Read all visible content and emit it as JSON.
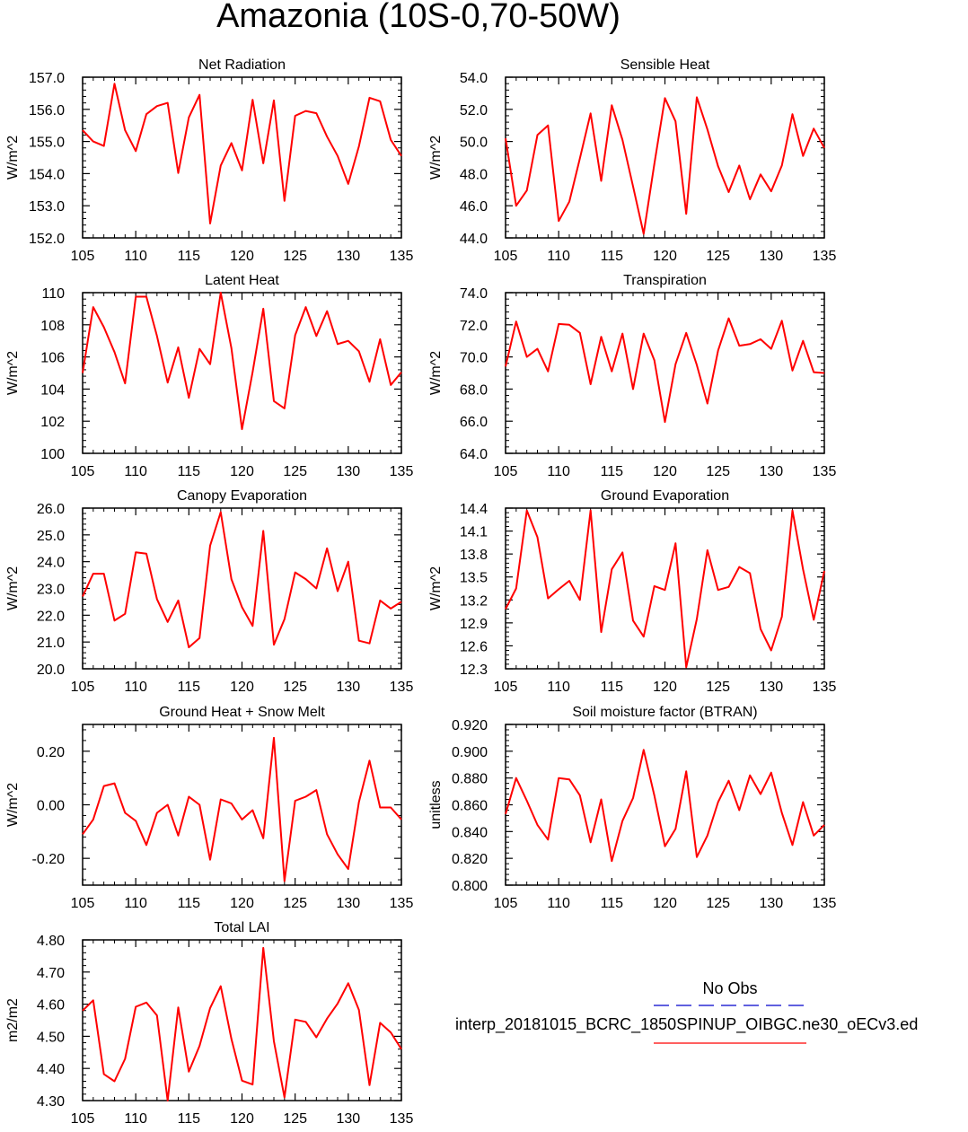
{
  "title": "Amazonia (10S-0,70-50W)",
  "legend": {
    "obs_label": "No Obs",
    "model_label": "interp_20181015_BCRC_1850SPINUP_OIBGC.ne30_oECv3.ed",
    "obs_color": "#0000cc",
    "model_color": "#ff0000"
  },
  "chart_data": [
    {
      "type": "line",
      "title": "Net Radiation",
      "ylabel": "W/m^2",
      "xlim": [
        105,
        135
      ],
      "ylim": [
        152.0,
        157.0
      ],
      "xticks": [
        "105",
        "110",
        "115",
        "120",
        "125",
        "130",
        "135"
      ],
      "yticks": [
        "152.0",
        "153.0",
        "154.0",
        "155.0",
        "156.0",
        "157.0"
      ],
      "x": [
        105,
        106,
        107,
        108,
        109,
        110,
        111,
        112,
        113,
        114,
        115,
        116,
        117,
        118,
        119,
        120,
        121,
        122,
        123,
        124,
        125,
        126,
        127,
        128,
        129,
        130,
        131,
        132,
        133,
        134,
        135
      ],
      "series": [
        {
          "values": [
            155.35,
            155.0,
            154.86,
            156.8,
            155.35,
            154.7,
            155.85,
            156.1,
            156.2,
            154.02,
            155.75,
            156.45,
            152.45,
            154.25,
            154.95,
            154.1,
            156.3,
            154.32,
            156.28,
            153.15,
            155.8,
            155.95,
            155.88,
            155.15,
            154.55,
            153.68,
            154.85,
            156.36,
            156.25,
            155.05,
            154.55
          ]
        }
      ]
    },
    {
      "type": "line",
      "title": "Sensible Heat",
      "ylabel": "W/m^2",
      "xlim": [
        105,
        135
      ],
      "ylim": [
        44.0,
        54.0
      ],
      "xticks": [
        "105",
        "110",
        "115",
        "120",
        "125",
        "130",
        "135"
      ],
      "yticks": [
        "44.0",
        "46.0",
        "48.0",
        "50.0",
        "52.0",
        "54.0"
      ],
      "x": [
        105,
        106,
        107,
        108,
        109,
        110,
        111,
        112,
        113,
        114,
        115,
        116,
        117,
        118,
        119,
        120,
        121,
        122,
        123,
        124,
        125,
        126,
        127,
        128,
        129,
        130,
        131,
        132,
        133,
        134,
        135
      ],
      "series": [
        {
          "values": [
            50.2,
            46.0,
            46.95,
            50.4,
            51.0,
            45.05,
            46.25,
            48.95,
            51.75,
            47.55,
            52.25,
            50.1,
            47.2,
            44.25,
            48.6,
            52.7,
            51.25,
            45.5,
            52.75,
            50.75,
            48.45,
            46.85,
            48.5,
            46.4,
            47.95,
            46.9,
            48.5,
            51.7,
            49.1,
            50.8,
            49.6
          ]
        }
      ]
    },
    {
      "type": "line",
      "title": "Latent Heat",
      "ylabel": "W/m^2",
      "xlim": [
        105,
        135
      ],
      "ylim": [
        100,
        110
      ],
      "xticks": [
        "105",
        "110",
        "115",
        "120",
        "125",
        "130",
        "135"
      ],
      "yticks": [
        "100",
        "102",
        "104",
        "106",
        "108",
        "110"
      ],
      "x": [
        105,
        106,
        107,
        108,
        109,
        110,
        111,
        112,
        113,
        114,
        115,
        116,
        117,
        118,
        119,
        120,
        121,
        122,
        123,
        124,
        125,
        126,
        127,
        128,
        129,
        130,
        131,
        132,
        133,
        134,
        135
      ],
      "series": [
        {
          "values": [
            105.0,
            109.1,
            107.85,
            106.3,
            104.35,
            109.75,
            109.75,
            107.3,
            104.4,
            106.6,
            103.45,
            106.5,
            105.55,
            110.0,
            106.55,
            101.5,
            105.05,
            109.0,
            103.25,
            102.8,
            107.35,
            109.1,
            107.3,
            108.85,
            106.8,
            107.0,
            106.35,
            104.45,
            107.1,
            104.25,
            105.05
          ]
        }
      ]
    },
    {
      "type": "line",
      "title": "Transpiration",
      "ylabel": "W/m^2",
      "xlim": [
        105,
        135
      ],
      "ylim": [
        64.0,
        74.0
      ],
      "xticks": [
        "105",
        "110",
        "115",
        "120",
        "125",
        "130",
        "135"
      ],
      "yticks": [
        "64.0",
        "66.0",
        "68.0",
        "70.0",
        "72.0",
        "74.0"
      ],
      "x": [
        105,
        106,
        107,
        108,
        109,
        110,
        111,
        112,
        113,
        114,
        115,
        116,
        117,
        118,
        119,
        120,
        121,
        122,
        123,
        124,
        125,
        126,
        127,
        128,
        129,
        130,
        131,
        132,
        133,
        134,
        135
      ],
      "series": [
        {
          "values": [
            69.4,
            72.2,
            70.0,
            70.5,
            69.1,
            72.05,
            72.0,
            71.5,
            68.3,
            71.25,
            69.1,
            71.45,
            68.0,
            71.45,
            69.8,
            65.95,
            69.55,
            71.5,
            69.5,
            67.1,
            70.4,
            72.4,
            70.7,
            70.8,
            71.1,
            70.5,
            72.25,
            69.15,
            71.0,
            69.05,
            69.0
          ]
        }
      ]
    },
    {
      "type": "line",
      "title": "Canopy Evaporation",
      "ylabel": "W/m^2",
      "xlim": [
        105,
        135
      ],
      "ylim": [
        20.0,
        26.0
      ],
      "xticks": [
        "105",
        "110",
        "115",
        "120",
        "125",
        "130",
        "135"
      ],
      "yticks": [
        "20.0",
        "21.0",
        "22.0",
        "23.0",
        "24.0",
        "25.0",
        "26.0"
      ],
      "x": [
        105,
        106,
        107,
        108,
        109,
        110,
        111,
        112,
        113,
        114,
        115,
        116,
        117,
        118,
        119,
        120,
        121,
        122,
        123,
        124,
        125,
        126,
        127,
        128,
        129,
        130,
        131,
        132,
        133,
        134,
        135
      ],
      "series": [
        {
          "values": [
            22.7,
            23.55,
            23.55,
            21.8,
            22.05,
            24.35,
            24.3,
            22.6,
            21.75,
            22.55,
            20.8,
            21.15,
            24.6,
            25.85,
            23.35,
            22.3,
            21.6,
            25.15,
            20.9,
            21.85,
            23.6,
            23.35,
            23.0,
            24.5,
            22.9,
            24.0,
            21.05,
            20.95,
            22.55,
            22.25,
            22.5
          ]
        }
      ]
    },
    {
      "type": "line",
      "title": "Ground Evaporation",
      "ylabel": "W/m^2",
      "xlim": [
        105,
        135
      ],
      "ylim": [
        12.3,
        14.4
      ],
      "xticks": [
        "105",
        "110",
        "115",
        "120",
        "125",
        "130",
        "135"
      ],
      "yticks": [
        "12.3",
        "12.6",
        "12.9",
        "13.2",
        "13.5",
        "13.8",
        "14.1",
        "14.4"
      ],
      "x": [
        105,
        106,
        107,
        108,
        109,
        110,
        111,
        112,
        113,
        114,
        115,
        116,
        117,
        118,
        119,
        120,
        121,
        122,
        123,
        124,
        125,
        126,
        127,
        128,
        129,
        130,
        131,
        132,
        133,
        134,
        135
      ],
      "series": [
        {
          "values": [
            13.08,
            13.35,
            14.37,
            14.02,
            13.22,
            13.34,
            13.45,
            13.2,
            14.37,
            12.78,
            13.6,
            13.82,
            12.93,
            12.72,
            13.38,
            13.33,
            13.94,
            12.32,
            12.95,
            13.85,
            13.33,
            13.37,
            13.63,
            13.55,
            12.82,
            12.54,
            12.98,
            14.37,
            13.6,
            12.94,
            13.58
          ]
        }
      ]
    },
    {
      "type": "line",
      "title": "Ground Heat + Snow Melt",
      "ylabel": "W/m^2",
      "xlim": [
        105,
        135
      ],
      "ylim": [
        -0.3,
        0.3
      ],
      "xticks": [
        "105",
        "110",
        "115",
        "120",
        "125",
        "130",
        "135"
      ],
      "yticks": [
        "-0.20",
        "0.00",
        "0.20"
      ],
      "x": [
        105,
        106,
        107,
        108,
        109,
        110,
        111,
        112,
        113,
        114,
        115,
        116,
        117,
        118,
        119,
        120,
        121,
        122,
        123,
        124,
        125,
        126,
        127,
        128,
        129,
        130,
        131,
        132,
        133,
        134,
        135
      ],
      "series": [
        {
          "values": [
            -0.11,
            -0.055,
            0.07,
            0.08,
            -0.03,
            -0.06,
            -0.15,
            -0.03,
            0.0,
            -0.115,
            0.03,
            0.0,
            -0.205,
            0.02,
            0.005,
            -0.055,
            -0.02,
            -0.125,
            0.25,
            -0.285,
            0.015,
            0.03,
            0.055,
            -0.11,
            -0.185,
            -0.24,
            0.01,
            0.165,
            -0.01,
            -0.01,
            -0.055
          ]
        }
      ]
    },
    {
      "type": "line",
      "title": "Soil moisture factor (BTRAN)",
      "ylabel": "unitless",
      "xlim": [
        105,
        135
      ],
      "ylim": [
        0.8,
        0.92
      ],
      "xticks": [
        "105",
        "110",
        "115",
        "120",
        "125",
        "130",
        "135"
      ],
      "yticks": [
        "0.800",
        "0.820",
        "0.840",
        "0.860",
        "0.880",
        "0.900",
        "0.920"
      ],
      "x": [
        105,
        106,
        107,
        108,
        109,
        110,
        111,
        112,
        113,
        114,
        115,
        116,
        117,
        118,
        119,
        120,
        121,
        122,
        123,
        124,
        125,
        126,
        127,
        128,
        129,
        130,
        131,
        132,
        133,
        134,
        135
      ],
      "series": [
        {
          "values": [
            0.853,
            0.88,
            0.863,
            0.845,
            0.834,
            0.88,
            0.879,
            0.867,
            0.832,
            0.864,
            0.818,
            0.848,
            0.865,
            0.901,
            0.867,
            0.829,
            0.842,
            0.885,
            0.821,
            0.837,
            0.862,
            0.878,
            0.856,
            0.882,
            0.868,
            0.884,
            0.854,
            0.83,
            0.862,
            0.837,
            0.845
          ]
        }
      ]
    },
    {
      "type": "line",
      "title": "Total LAI",
      "ylabel": "m2/m2",
      "xlim": [
        105,
        135
      ],
      "ylim": [
        4.3,
        4.8
      ],
      "xticks": [
        "105",
        "110",
        "115",
        "120",
        "125",
        "130",
        "135"
      ],
      "yticks": [
        "4.30",
        "4.40",
        "4.50",
        "4.60",
        "4.70",
        "4.80"
      ],
      "x": [
        105,
        106,
        107,
        108,
        109,
        110,
        111,
        112,
        113,
        114,
        115,
        116,
        117,
        118,
        119,
        120,
        121,
        122,
        123,
        124,
        125,
        126,
        127,
        128,
        129,
        130,
        131,
        132,
        133,
        134,
        135
      ],
      "series": [
        {
          "values": [
            4.58,
            4.612,
            4.382,
            4.36,
            4.43,
            4.592,
            4.605,
            4.565,
            4.3,
            4.59,
            4.39,
            4.47,
            4.588,
            4.656,
            4.492,
            4.362,
            4.35,
            4.775,
            4.485,
            4.31,
            4.552,
            4.545,
            4.497,
            4.555,
            4.602,
            4.665,
            4.582,
            4.348,
            4.542,
            4.512,
            4.46
          ]
        }
      ]
    }
  ]
}
